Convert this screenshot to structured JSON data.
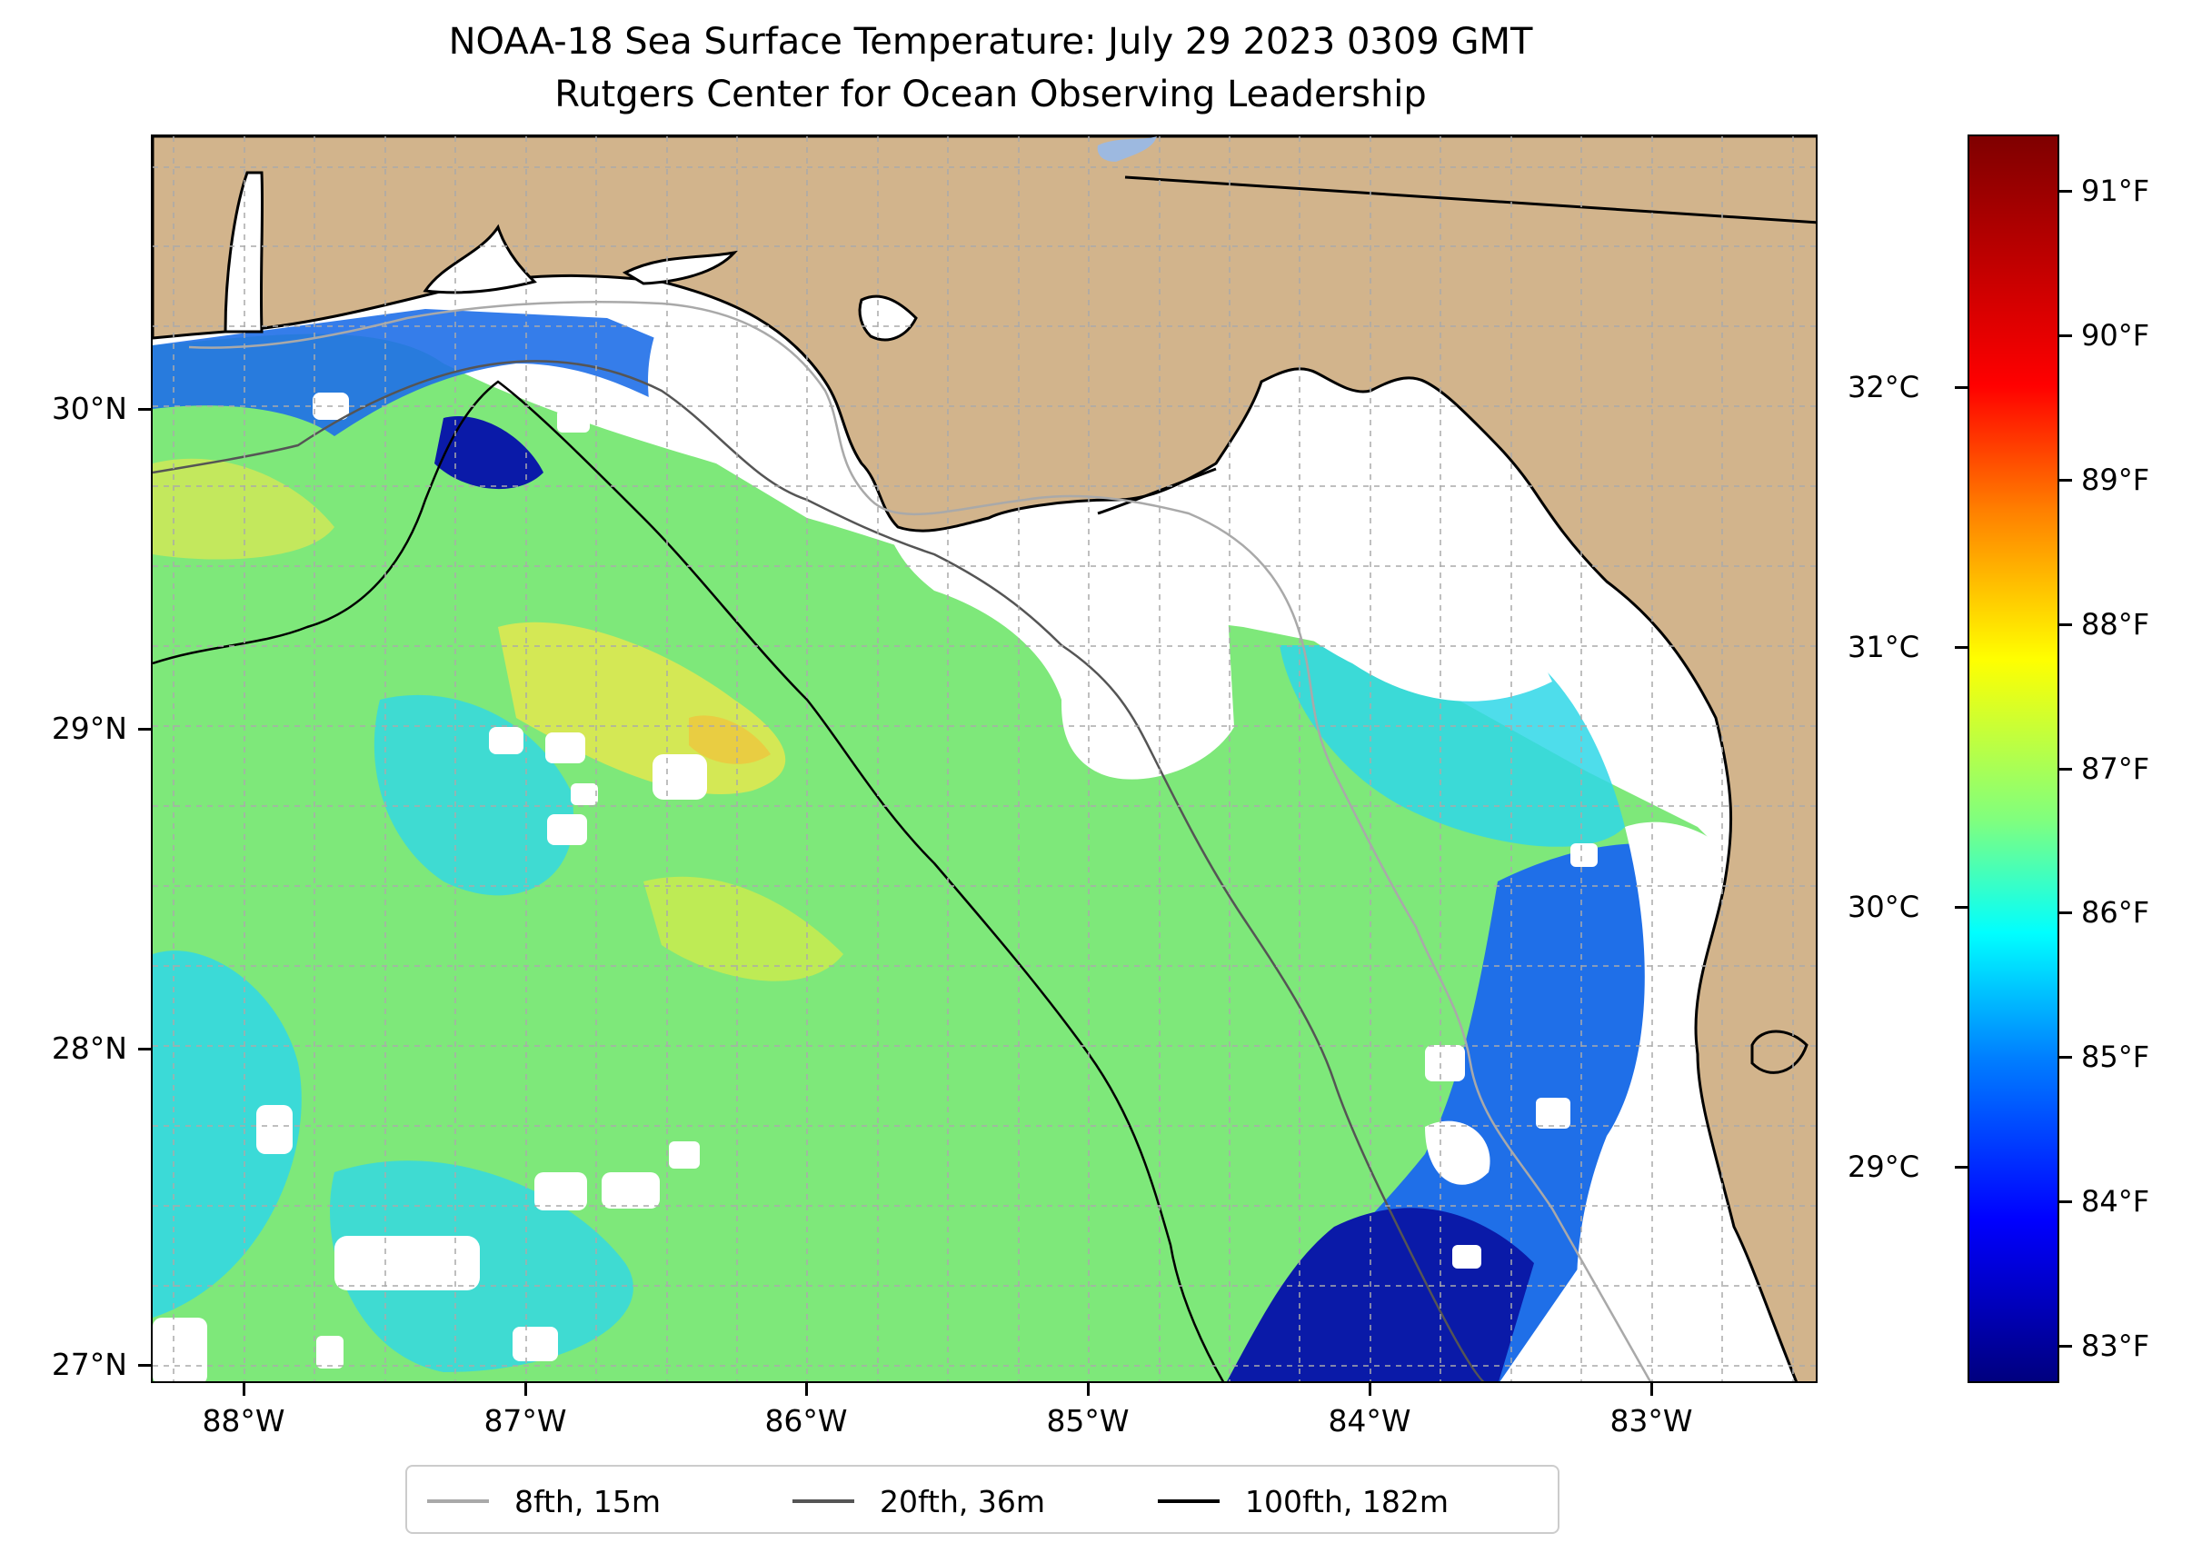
{
  "title_line1": "NOAA-18 Sea Surface Temperature: July 29 2023 0309 GMT",
  "title_line2": "Rutgers Center for Ocean Observing Leadership",
  "map": {
    "latitude_ticks": [
      "30°N",
      "29°N",
      "28°N",
      "27°N"
    ],
    "longitude_ticks": [
      "88°W",
      "87°W",
      "86°W",
      "85°W",
      "84°W",
      "83°W"
    ],
    "colors": {
      "land": "#D2B48C",
      "lake": "#9DB9E0",
      "no_data": "#FFFFFF",
      "grid": "#AAAAAA"
    },
    "features": [
      "land-area",
      "cloud-gaps",
      "sea-surface-temperature-field",
      "bathymetry-contours",
      "coastline",
      "state-border",
      "lat-lon-grid"
    ]
  },
  "colorbar": {
    "celsius_ticks": [
      "32°C",
      "31°C",
      "30°C",
      "29°C"
    ],
    "fahrenheit_ticks": [
      "91°F",
      "90°F",
      "89°F",
      "88°F",
      "87°F",
      "86°F",
      "85°F",
      "84°F",
      "83°F"
    ],
    "fahrenheit_range": [
      82.7,
      91.4
    ],
    "colormap": "jet"
  },
  "legend": {
    "items": [
      {
        "label": "8fth, 15m",
        "color": "#A9A9A9"
      },
      {
        "label": "20fth, 36m",
        "color": "#555555"
      },
      {
        "label": "100fth, 182m",
        "color": "#000000"
      }
    ]
  }
}
